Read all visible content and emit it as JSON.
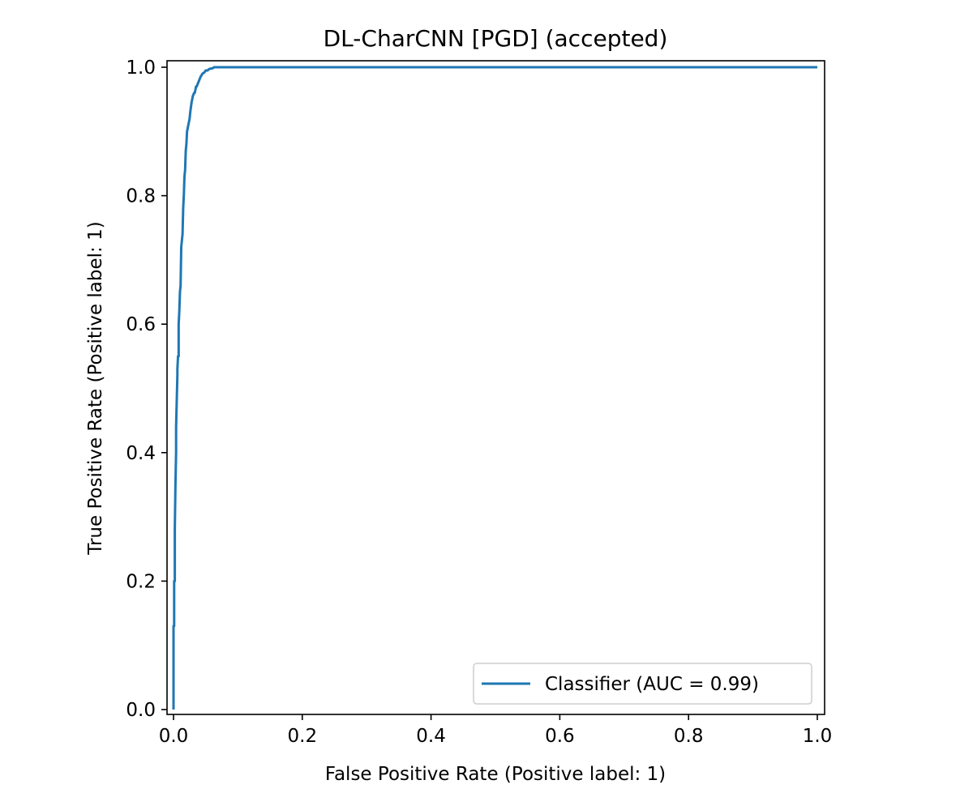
{
  "chart_data": {
    "type": "line",
    "title": "DL-CharCNN [PGD] (accepted)",
    "xlabel": "False Positive Rate (Positive label: 1)",
    "ylabel": "True Positive Rate (Positive label: 1)",
    "xlim": [
      0,
      1
    ],
    "ylim": [
      0,
      1
    ],
    "xticks": [
      0.0,
      0.2,
      0.4,
      0.6,
      0.8,
      1.0
    ],
    "xtick_labels": [
      "0.0",
      "0.2",
      "0.4",
      "0.6",
      "0.8",
      "1.0"
    ],
    "yticks": [
      0.0,
      0.2,
      0.4,
      0.6,
      0.8,
      1.0
    ],
    "ytick_labels": [
      "0.0",
      "0.2",
      "0.4",
      "0.6",
      "0.8",
      "1.0"
    ],
    "grid": false,
    "legend_position": "lower-right",
    "series": [
      {
        "name": "Classifier (AUC = 0.99)",
        "color": "#1f77b4",
        "x": [
          0.0,
          0.0,
          0.001,
          0.001,
          0.002,
          0.002,
          0.003,
          0.004,
          0.004,
          0.005,
          0.006,
          0.006,
          0.007,
          0.008,
          0.008,
          0.009,
          0.01,
          0.011,
          0.012,
          0.013,
          0.014,
          0.015,
          0.016,
          0.017,
          0.018,
          0.019,
          0.02,
          0.021,
          0.022,
          0.023,
          0.025,
          0.026,
          0.028,
          0.03,
          0.032,
          0.033,
          0.035,
          0.036,
          0.038,
          0.04,
          0.042,
          0.045,
          0.048,
          0.05,
          0.053,
          0.055,
          0.058,
          0.06,
          0.063,
          0.07,
          0.1,
          0.2,
          0.3,
          0.4,
          0.5,
          0.6,
          0.7,
          0.8,
          0.9,
          1.0
        ],
        "y": [
          0.0,
          0.13,
          0.13,
          0.2,
          0.2,
          0.28,
          0.35,
          0.4,
          0.44,
          0.48,
          0.52,
          0.53,
          0.55,
          0.55,
          0.6,
          0.62,
          0.65,
          0.66,
          0.72,
          0.73,
          0.74,
          0.78,
          0.8,
          0.83,
          0.84,
          0.87,
          0.88,
          0.9,
          0.905,
          0.91,
          0.92,
          0.93,
          0.945,
          0.955,
          0.96,
          0.96,
          0.97,
          0.97,
          0.975,
          0.98,
          0.985,
          0.99,
          0.992,
          0.995,
          0.995,
          0.997,
          0.998,
          0.998,
          1.0,
          1.0,
          1.0,
          1.0,
          1.0,
          1.0,
          1.0,
          1.0,
          1.0,
          1.0,
          1.0,
          1.0
        ]
      }
    ]
  }
}
